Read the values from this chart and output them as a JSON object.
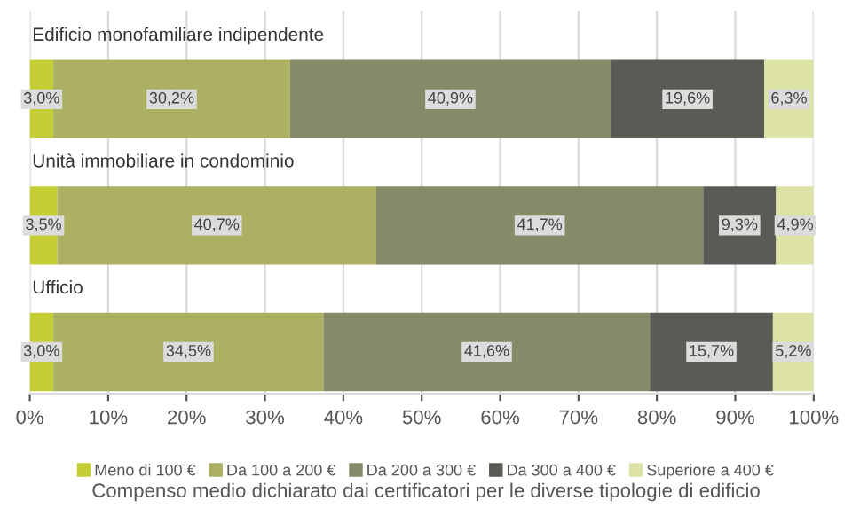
{
  "chart_data": {
    "type": "bar",
    "orientation": "horizontal",
    "stacked": true,
    "categories": [
      "Edificio monofamiliare indipendente",
      "Unità immobiliare in condominio",
      "Ufficio"
    ],
    "series": [
      {
        "name": "Meno di 100 €",
        "color": "#c5cf35",
        "values": [
          3.0,
          3.5,
          3.0
        ],
        "value_labels": [
          "3,0%",
          "3,5%",
          "3,0%"
        ]
      },
      {
        "name": "Da 100 a 200 €",
        "color": "#abb063",
        "values": [
          30.2,
          40.7,
          34.5
        ],
        "value_labels": [
          "30,2%",
          "40,7%",
          "34,5%"
        ]
      },
      {
        "name": "Da 200 a 300 €",
        "color": "#878a68",
        "values": [
          40.9,
          41.7,
          41.6
        ],
        "value_labels": [
          "40,9%",
          "41,7%",
          "41,6%"
        ]
      },
      {
        "name": "Da 300 a 400 €",
        "color": "#5a5b55",
        "values": [
          19.6,
          9.3,
          15.7
        ],
        "value_labels": [
          "19,6%",
          "9,3%",
          "15,7%"
        ]
      },
      {
        "name": "Superiore a 400 €",
        "color": "#dde3a6",
        "values": [
          6.3,
          4.9,
          5.2
        ],
        "value_labels": [
          "6,3%",
          "4,9%",
          "5,2%"
        ]
      }
    ],
    "xlim": [
      0,
      100
    ],
    "xticks": [
      {
        "value": 0,
        "label": "0%"
      },
      {
        "value": 10,
        "label": "10%"
      },
      {
        "value": 20,
        "label": "20%"
      },
      {
        "value": 30,
        "label": "30%"
      },
      {
        "value": 40,
        "label": "40%"
      },
      {
        "value": 50,
        "label": "50%"
      },
      {
        "value": 60,
        "label": "60%"
      },
      {
        "value": 70,
        "label": "70%"
      },
      {
        "value": 80,
        "label": "80%"
      },
      {
        "value": 90,
        "label": "90%"
      },
      {
        "value": 100,
        "label": "100%"
      }
    ],
    "grid": "x",
    "legend": "bottom",
    "annotations": [
      "Compenso medio dichiarato dai certificatori per le diverse tipologie di edificio"
    ]
  }
}
